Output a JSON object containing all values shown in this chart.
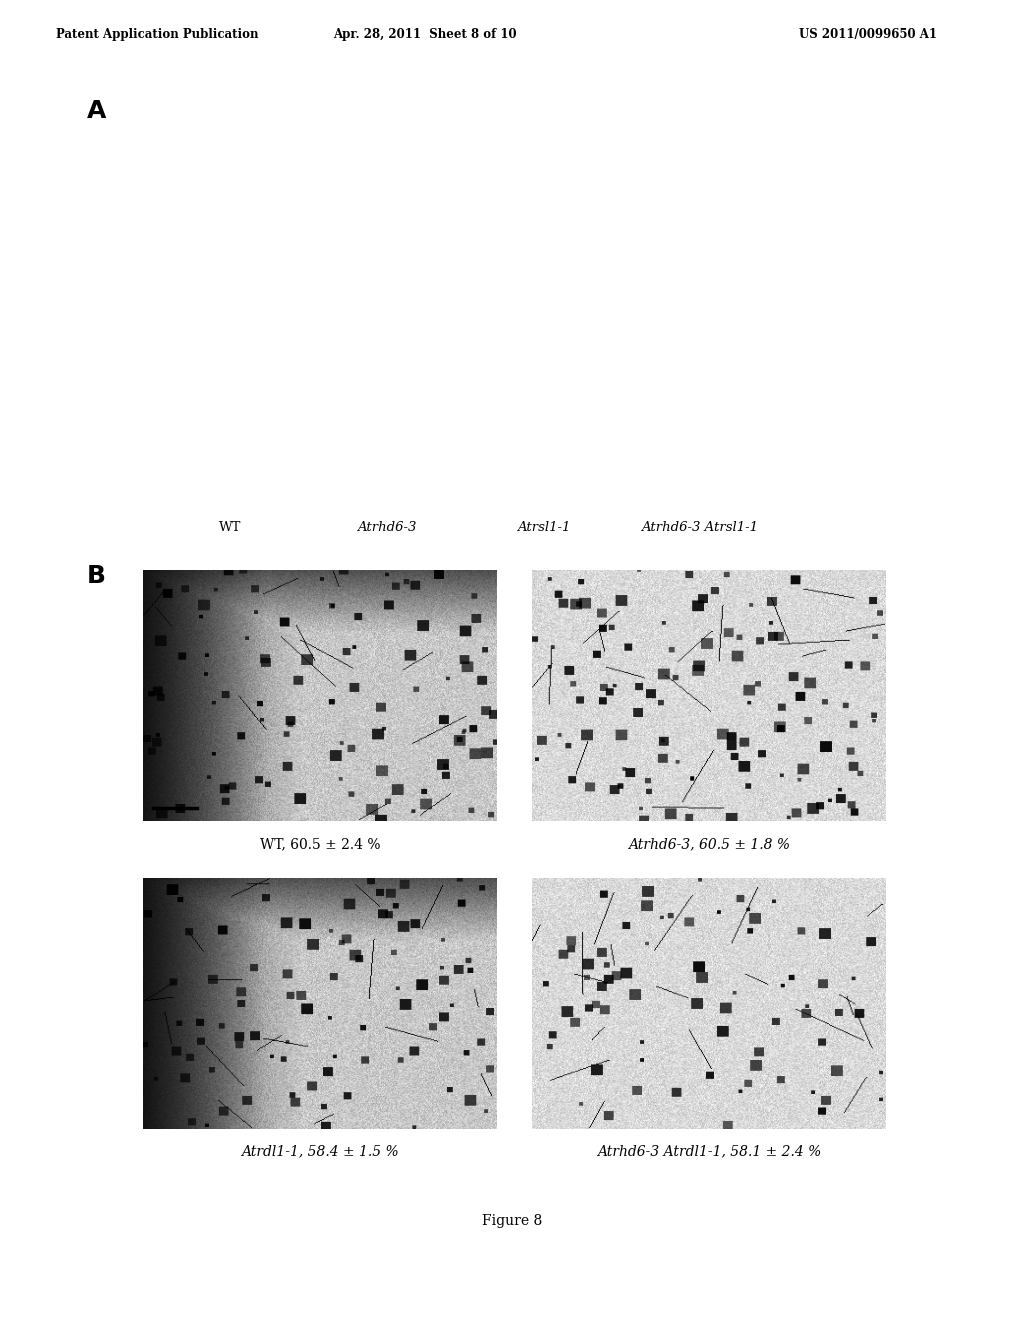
{
  "header_left": "Patent Application Publication",
  "header_mid": "Apr. 28, 2011  Sheet 8 of 10",
  "header_right": "US 2011/0099650 A1",
  "panel_A_label": "A",
  "panel_B_label": "B",
  "panel_A_labels": [
    "WT",
    "Atrhd6-3",
    "Atrsl1-1",
    "Atrhd6-3 Atrsl1-1"
  ],
  "panel_A_italic": [
    false,
    true,
    true,
    true
  ],
  "panel_B_labels_genotype": [
    "WT",
    "Atrhd6-3",
    "Atrdl1-1",
    "Atrhd6-3 Atrdl1-1"
  ],
  "panel_B_labels_value": [
    ", 60.5 ± 2.4 %",
    ", 60.5 ± 1.8 %",
    ", 58.4 ± 1.5 %",
    ", 58.1 ± 2.4 %"
  ],
  "panel_B_italic": [
    false,
    true,
    true,
    true
  ],
  "figure_label": "Figure 8",
  "background_color": "#ffffff"
}
